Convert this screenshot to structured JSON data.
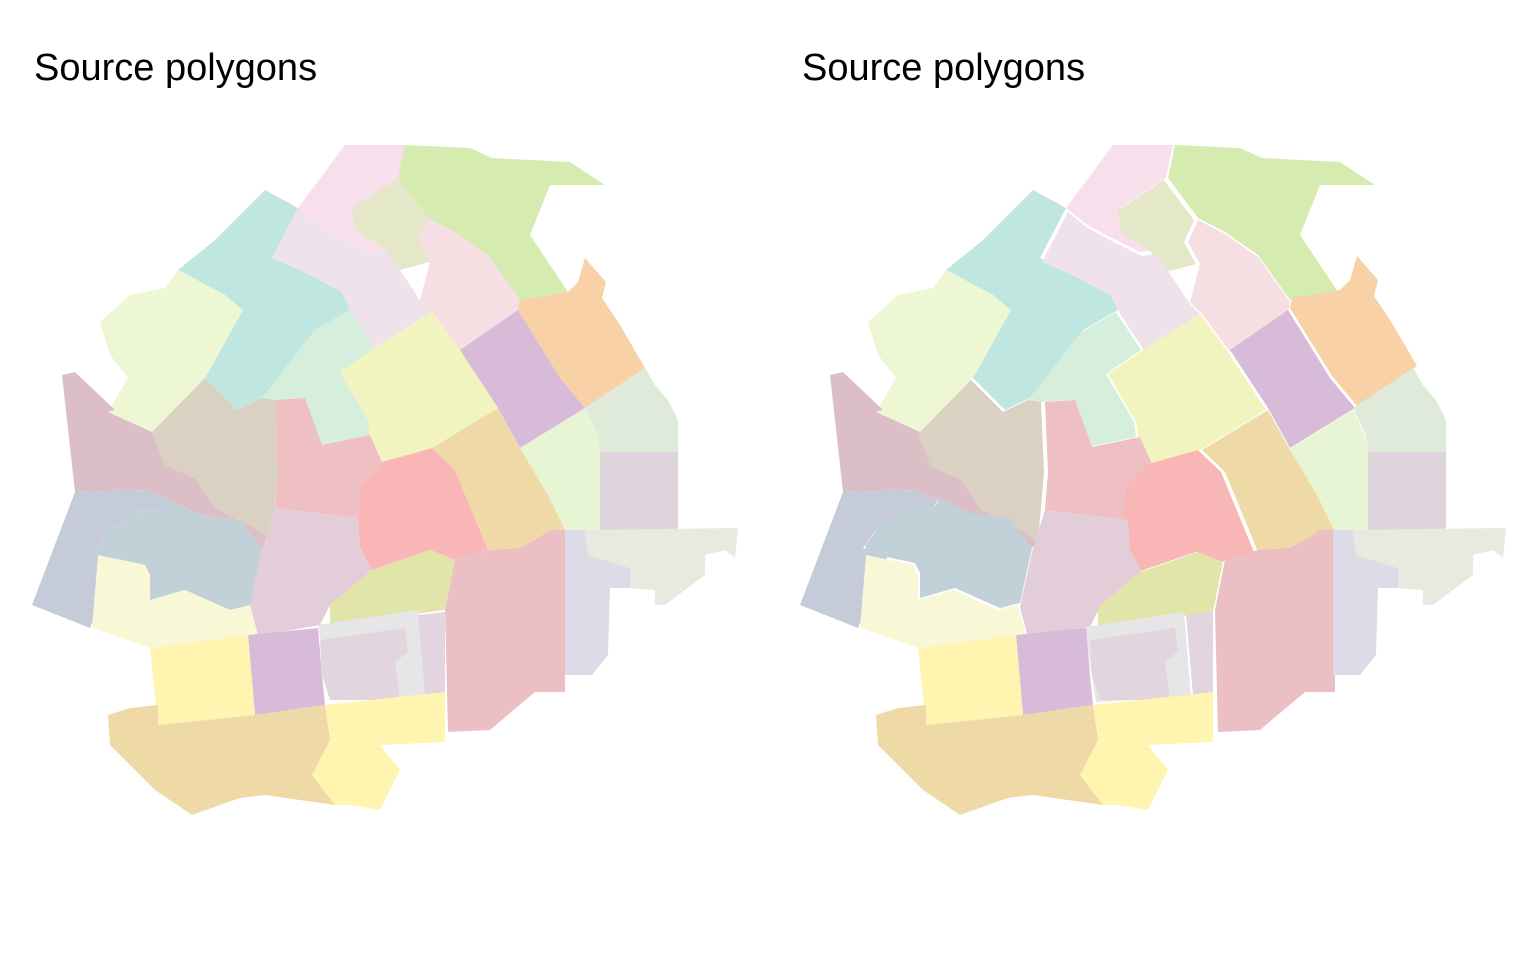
{
  "panels": [
    {
      "title": "Source polygons"
    },
    {
      "title": "Source polygons"
    }
  ],
  "palette": {
    "pink_light": "#f7dfec",
    "green_yellow": "#d6ebb0",
    "olive_light": "#e5e7c9",
    "teal": "#bfe6df",
    "lavender_pink": "#f0e2ea",
    "rose_light": "#f5dfe3",
    "lime_pale": "#eef7d4",
    "mint": "#d6eedc",
    "peach": "#f8d1a6",
    "yellow_pale": "#f2f4c0",
    "purple": "#d8bbd8",
    "mauve": "#dcbfc6",
    "tan": "#dbd1c2",
    "rose": "#eebfc3",
    "sage_light": "#e0eadb",
    "lime_light": "#e8f5d4",
    "grey_purple": "#ddd4dc",
    "salmon": "#f8b7b6",
    "sand": "#efdaa7",
    "slate_blue": "#c5cbd9",
    "blue_grey": "#c2d0d7",
    "pink_grey": "#e3cdd9",
    "cream": "#f8f8d6",
    "khaki_light": "#e1e5a9",
    "pink": "#ebbfc3",
    "lilac_grey": "#dddbe7",
    "stone": "#e9e9df",
    "grey": "#e6e6e6",
    "lilac": "#e3d5df",
    "yellow": "#fff5b0"
  }
}
